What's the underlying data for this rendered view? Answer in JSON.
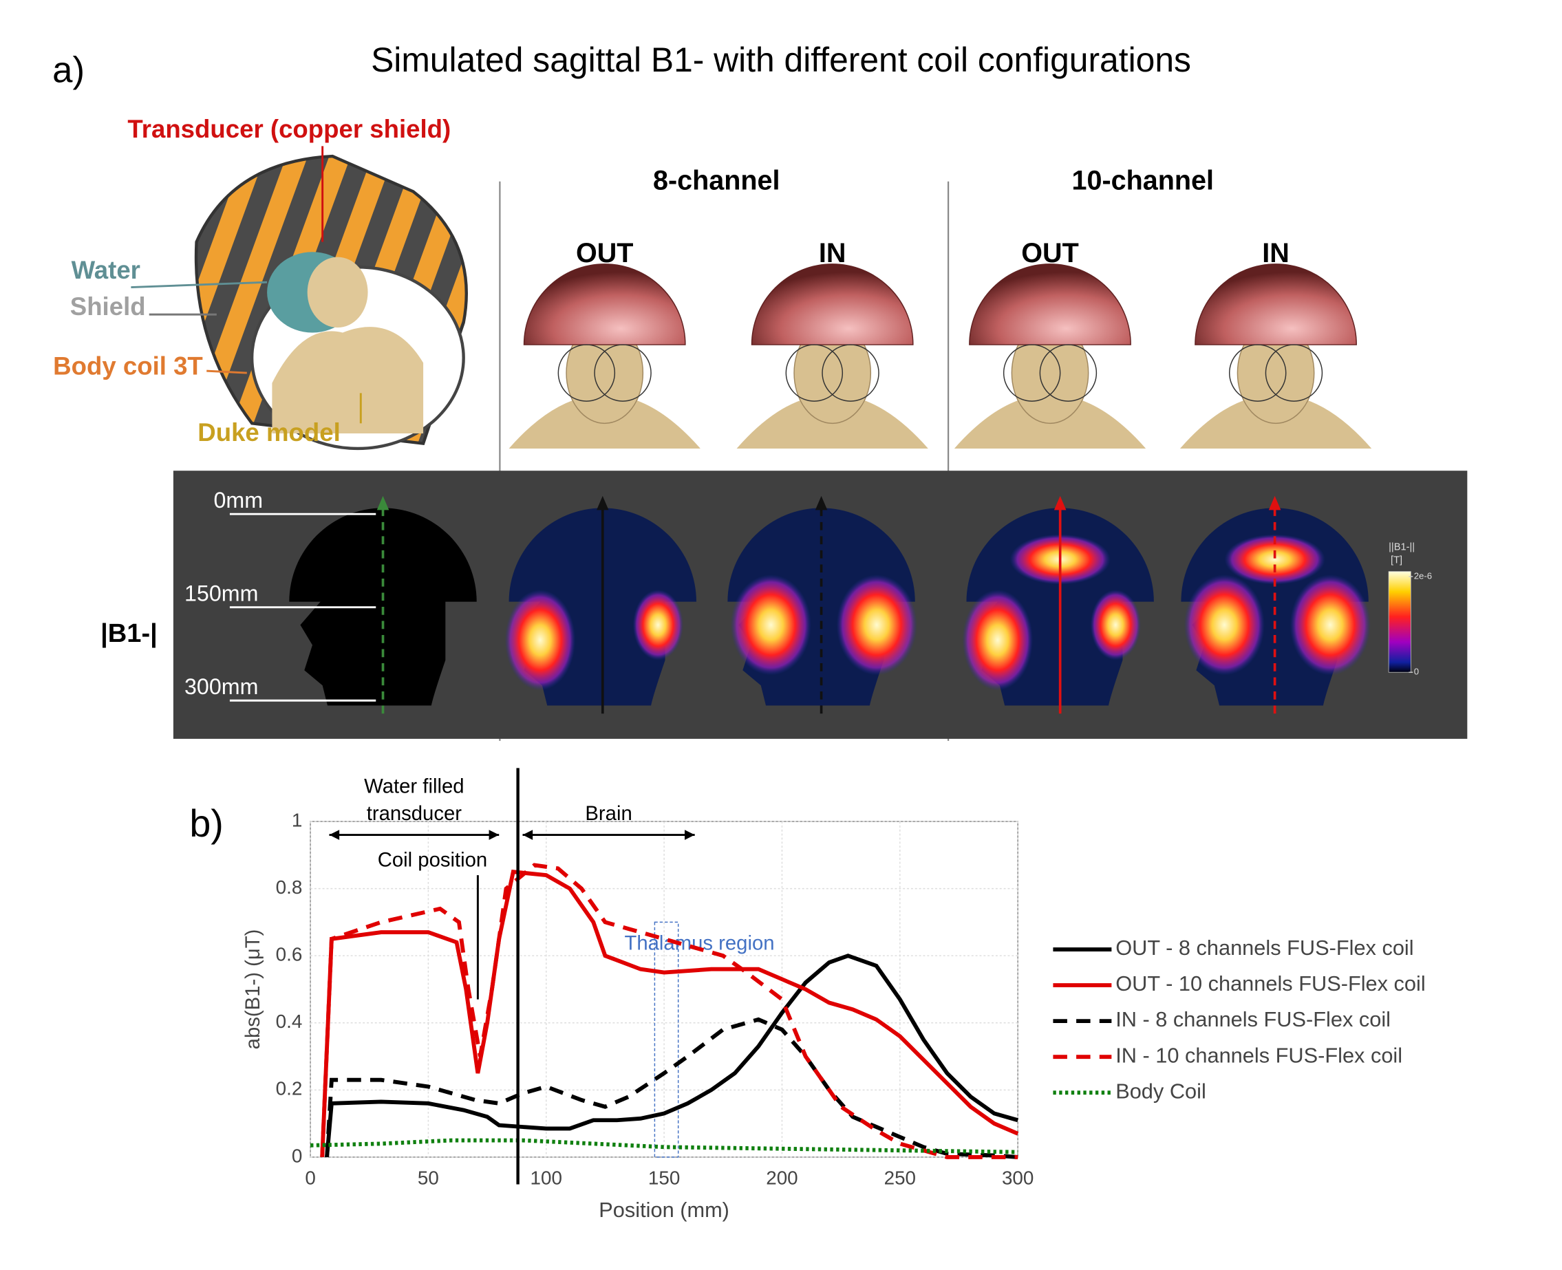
{
  "figure": {
    "panel": "a)",
    "title": "Simulated sagittal B1- with different coil configurations",
    "parts": {
      "transducer": "Transducer (copper shield)",
      "water": "Water",
      "shield": "Shield",
      "body_coil": "Body coil 3T",
      "duke": "Duke model"
    },
    "groups": [
      "8-channel",
      "10-channel"
    ],
    "positions": [
      "OUT",
      "IN",
      "OUT",
      "IN"
    ],
    "map_label": "|B1-|",
    "depth_ticks": [
      {
        "value": 0,
        "label": "0mm"
      },
      {
        "value": 150,
        "label": "150mm"
      },
      {
        "value": 300,
        "label": "300mm"
      }
    ],
    "colorbar": {
      "title": "||B1-||",
      "unit": "[T]",
      "ticks": [
        {
          "value": 2e-06,
          "label": "2e-6"
        },
        0
      ]
    }
  },
  "chart_data": {
    "type": "line",
    "panel": "b)",
    "x_label": "Position (mm)",
    "y_label": "abs(B1-) (μT)",
    "xlim": [
      0,
      300
    ],
    "ylim": [
      0,
      1
    ],
    "xticks": [
      0,
      50,
      100,
      150,
      200,
      250,
      300
    ],
    "yticks": [
      0,
      0.2,
      0.4,
      0.6,
      0.8,
      1
    ],
    "grid": true,
    "legend": "right",
    "series": [
      {
        "name": "OUT - 8 channels FUS-Flex coil",
        "color": "#000000",
        "style": "solid",
        "x": [
          7,
          9,
          30,
          50,
          65,
          75,
          80,
          90,
          100,
          110,
          120,
          130,
          140,
          150,
          160,
          170,
          180,
          190,
          200,
          210,
          220,
          228,
          240,
          250,
          260,
          270,
          280,
          290,
          300
        ],
        "values": [
          0,
          0.16,
          0.165,
          0.16,
          0.14,
          0.12,
          0.095,
          0.09,
          0.085,
          0.085,
          0.11,
          0.11,
          0.115,
          0.13,
          0.16,
          0.2,
          0.25,
          0.33,
          0.43,
          0.52,
          0.58,
          0.6,
          0.57,
          0.47,
          0.35,
          0.25,
          0.18,
          0.13,
          0.11
        ]
      },
      {
        "name": "OUT - 10 channels FUS-Flex coil",
        "color": "#e00000",
        "style": "solid",
        "x": [
          5,
          9,
          30,
          50,
          62,
          66,
          71,
          75,
          80,
          86,
          100,
          110,
          120,
          125,
          140,
          150,
          170,
          190,
          200,
          210,
          220,
          230,
          240,
          250,
          260,
          270,
          280,
          290,
          300
        ],
        "values": [
          0,
          0.65,
          0.67,
          0.67,
          0.64,
          0.5,
          0.25,
          0.4,
          0.65,
          0.85,
          0.84,
          0.8,
          0.7,
          0.6,
          0.56,
          0.55,
          0.56,
          0.56,
          0.53,
          0.5,
          0.46,
          0.44,
          0.41,
          0.36,
          0.29,
          0.22,
          0.15,
          0.1,
          0.07
        ]
      },
      {
        "name": "IN - 8 channels FUS-Flex coil",
        "color": "#000000",
        "style": "dashed",
        "x": [
          7,
          9,
          30,
          50,
          70,
          80,
          90,
          100,
          115,
          125,
          135,
          150,
          160,
          175,
          190,
          200,
          210,
          220,
          230,
          240,
          250,
          260,
          270,
          290,
          300
        ],
        "values": [
          0,
          0.23,
          0.23,
          0.21,
          0.17,
          0.16,
          0.19,
          0.21,
          0.17,
          0.15,
          0.18,
          0.25,
          0.3,
          0.38,
          0.41,
          0.38,
          0.3,
          0.2,
          0.12,
          0.09,
          0.06,
          0.03,
          0.01,
          0.005,
          0
        ]
      },
      {
        "name": "IN - 10 channels FUS-Flex coil",
        "color": "#e00000",
        "style": "dashed",
        "x": [
          5,
          9,
          30,
          55,
          63,
          67,
          72,
          77,
          83,
          95,
          105,
          115,
          125,
          135,
          150,
          160,
          175,
          185,
          200,
          210,
          225,
          240,
          250,
          260,
          270,
          300
        ],
        "values": [
          0,
          0.65,
          0.7,
          0.74,
          0.7,
          0.5,
          0.3,
          0.5,
          0.8,
          0.87,
          0.86,
          0.8,
          0.7,
          0.68,
          0.65,
          0.63,
          0.6,
          0.55,
          0.47,
          0.3,
          0.15,
          0.08,
          0.04,
          0.02,
          0,
          0
        ]
      },
      {
        "name": "Body Coil",
        "color": "#108010",
        "style": "dotted",
        "x": [
          0,
          30,
          60,
          90,
          120,
          150,
          200,
          250,
          300
        ],
        "values": [
          0.035,
          0.04,
          0.05,
          0.05,
          0.04,
          0.03,
          0.025,
          0.02,
          0.015
        ]
      }
    ],
    "marker_line": 88,
    "spans": [
      {
        "lines": [
          "Water filled",
          "transducer"
        ],
        "x": [
          8,
          80
        ],
        "y": 0.96
      },
      {
        "lines": [
          "Brain"
        ],
        "x": [
          90,
          163
        ],
        "y": 0.96
      }
    ],
    "coil_note": {
      "text": "Coil position",
      "x": 71,
      "y": [
        0.84,
        0.47
      ]
    },
    "region": {
      "text": "Thalamus region",
      "x": [
        146,
        156
      ],
      "y": [
        0,
        0.7
      ],
      "color": "#4472c4"
    }
  }
}
